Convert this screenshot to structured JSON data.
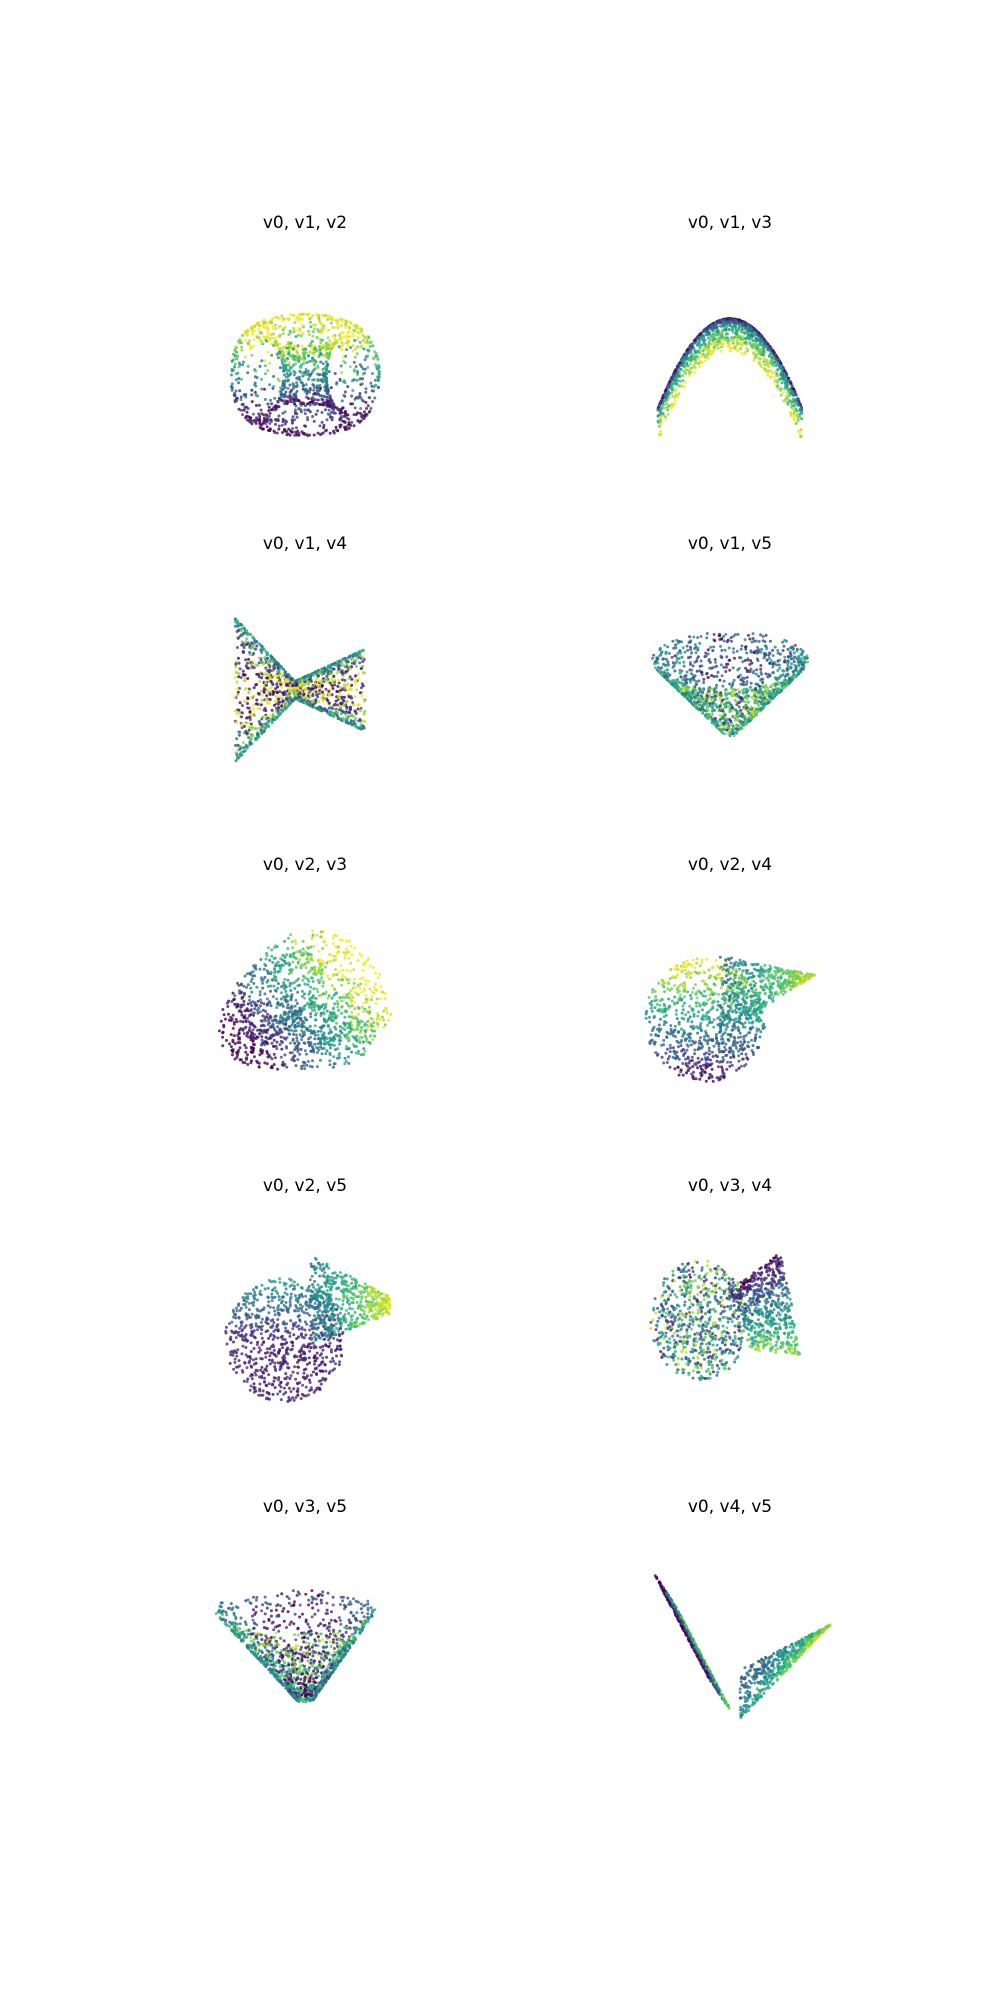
{
  "chart_data": [
    {
      "type": "scatter",
      "title": "v0, v1, v2",
      "shape": "torus",
      "grid": false,
      "axes_visible": false,
      "colormap": "viridis"
    },
    {
      "type": "scatter",
      "title": "v0, v1, v3",
      "shape": "arch",
      "grid": false,
      "axes_visible": false,
      "colormap": "viridis"
    },
    {
      "type": "scatter",
      "title": "v0, v1, v4",
      "shape": "bowtie",
      "grid": false,
      "axes_visible": false,
      "colormap": "viridis"
    },
    {
      "type": "scatter",
      "title": "v0, v1, v5",
      "shape": "cone",
      "grid": false,
      "axes_visible": false,
      "colormap": "viridis"
    },
    {
      "type": "scatter",
      "title": "v0, v2, v3",
      "shape": "folded-heart",
      "grid": false,
      "axes_visible": false,
      "colormap": "viridis"
    },
    {
      "type": "scatter",
      "title": "v0, v2, v4",
      "shape": "fold-right",
      "grid": false,
      "axes_visible": false,
      "colormap": "viridis"
    },
    {
      "type": "scatter",
      "title": "v0, v2, v5",
      "shape": "fold-right-flat",
      "grid": false,
      "axes_visible": false,
      "colormap": "viridis"
    },
    {
      "type": "scatter",
      "title": "v0, v3, v4",
      "shape": "twist",
      "grid": false,
      "axes_visible": false,
      "colormap": "viridis"
    },
    {
      "type": "scatter",
      "title": "v0, v3, v5",
      "shape": "funnel",
      "grid": false,
      "axes_visible": false,
      "colormap": "viridis"
    },
    {
      "type": "scatter",
      "title": "v0, v4, v5",
      "shape": "v-fold",
      "grid": false,
      "axes_visible": false,
      "colormap": "viridis"
    }
  ],
  "colors": {
    "background": "#ffffff",
    "viridis_dark": "#440154",
    "viridis_teal": "#21918c",
    "viridis_yellow": "#fde725"
  }
}
